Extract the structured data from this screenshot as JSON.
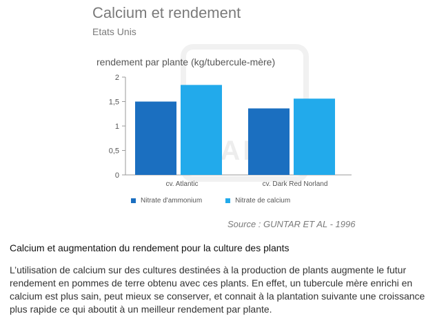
{
  "chart_data": {
    "type": "bar",
    "title": "Calcium et rendement",
    "subtitle": "Etats Unis",
    "ylabel": "rendement par plante (kg/tubercule-mère)",
    "xlabel": "",
    "categories": [
      "cv. Atlantic",
      "cv. Dark Red Norland"
    ],
    "series": [
      {
        "name": "Nitrate d'ammonium",
        "values": [
          1.5,
          1.36
        ],
        "color": "#1b6fc0"
      },
      {
        "name": "Nitrate de calcium",
        "values": [
          1.84,
          1.56
        ],
        "color": "#22aaeb"
      }
    ],
    "ylim": [
      0,
      2
    ],
    "yticks": [
      "0",
      "0,5",
      "1",
      "1,5",
      "2"
    ],
    "grid": false,
    "legend_position": "bottom",
    "source": "Source : GUNTAR ET AL - 1996",
    "watermark": "VARA"
  },
  "section": {
    "heading": "Calcium et augmentation du rendement pour la culture des plants",
    "paragraph": "L’utilisation de calcium sur des cultures destinées à la production de plants augmente le futur rendement en pommes de terre obtenu avec ces plants. En effet, un tubercule mère enrichi en calcium est plus sain, peut mieux se conserver, et connait à la plantation suivante une croissance plus rapide ce qui aboutit à un meilleur rendement par plante."
  }
}
